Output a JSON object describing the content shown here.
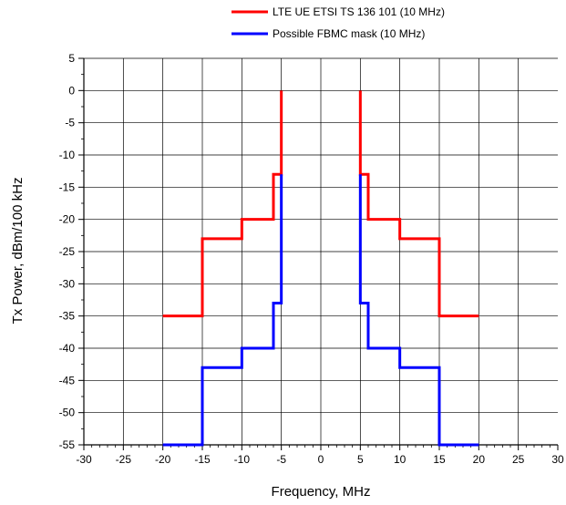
{
  "chart_data": {
    "type": "line",
    "xlabel": "Frequency, MHz",
    "ylabel": "Tx Power, dBm/100 kHz",
    "xlim": [
      -30,
      30
    ],
    "ylim": [
      -55,
      5
    ],
    "x_ticks": [
      -30,
      -25,
      -20,
      -15,
      -10,
      -5,
      0,
      5,
      10,
      15,
      20,
      25,
      30
    ],
    "x_tick_labels": [
      "-30",
      "-25",
      "-20",
      "-15",
      "-10",
      "-5",
      "0",
      "5",
      "10",
      "15",
      "20",
      "25",
      "30"
    ],
    "y_ticks": [
      5,
      0,
      -5,
      -10,
      -15,
      -20,
      -25,
      -30,
      -35,
      -40,
      -45,
      -50,
      -55
    ],
    "y_tick_labels": [
      "5",
      "0",
      "-5",
      "-10",
      "-15",
      "-20",
      "-25",
      "-30",
      "-35",
      "-40",
      "-45",
      "-50",
      "-55"
    ],
    "grid": true,
    "legend_position": "top-right",
    "series": [
      {
        "name": "LTE UE ETSI TS 136 101 (10 MHz)",
        "color": "#ff0000",
        "points": [
          [
            -20,
            -35
          ],
          [
            -15,
            -35
          ],
          [
            -15,
            -23
          ],
          [
            -10,
            -23
          ],
          [
            -10,
            -20
          ],
          [
            -6,
            -20
          ],
          [
            -6,
            -13
          ],
          [
            -5,
            -13
          ],
          [
            -5,
            0
          ]
        ],
        "points_right": [
          [
            5,
            0
          ],
          [
            5,
            -13
          ],
          [
            6,
            -13
          ],
          [
            6,
            -20
          ],
          [
            10,
            -20
          ],
          [
            10,
            -23
          ],
          [
            15,
            -23
          ],
          [
            15,
            -35
          ],
          [
            20,
            -35
          ]
        ]
      },
      {
        "name": "Possible FBMC mask (10 MHz)",
        "color": "#0000ff",
        "points": [
          [
            -20,
            -55
          ],
          [
            -15,
            -55
          ],
          [
            -15,
            -43
          ],
          [
            -10,
            -43
          ],
          [
            -10,
            -40
          ],
          [
            -6,
            -40
          ],
          [
            -6,
            -33
          ],
          [
            -5,
            -33
          ],
          [
            -5,
            -13
          ]
        ],
        "points_right": [
          [
            5,
            -13
          ],
          [
            5,
            -33
          ],
          [
            6,
            -33
          ],
          [
            6,
            -40
          ],
          [
            10,
            -40
          ],
          [
            10,
            -43
          ],
          [
            15,
            -43
          ],
          [
            15,
            -55
          ],
          [
            20,
            -55
          ]
        ]
      }
    ]
  }
}
